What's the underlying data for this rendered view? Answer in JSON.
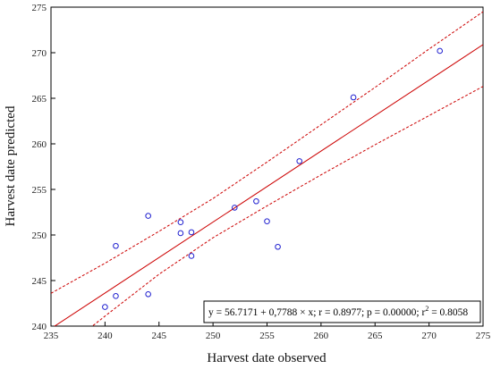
{
  "chart_data": {
    "type": "scatter",
    "xlabel": "Harvest date observed",
    "ylabel": "Harvest date predicted",
    "xlim": [
      235,
      275
    ],
    "ylim": [
      240,
      275
    ],
    "xticks": [
      235,
      240,
      245,
      250,
      255,
      260,
      265,
      270,
      275
    ],
    "yticks": [
      240,
      245,
      250,
      255,
      260,
      265,
      270,
      275
    ],
    "grid": false,
    "points": [
      {
        "x": 240.0,
        "y": 242.1
      },
      {
        "x": 241.0,
        "y": 243.3
      },
      {
        "x": 241.0,
        "y": 248.8
      },
      {
        "x": 244.0,
        "y": 243.5
      },
      {
        "x": 244.0,
        "y": 252.1
      },
      {
        "x": 247.0,
        "y": 250.2
      },
      {
        "x": 247.0,
        "y": 251.4
      },
      {
        "x": 248.0,
        "y": 250.3
      },
      {
        "x": 248.0,
        "y": 247.7
      },
      {
        "x": 252.0,
        "y": 253.0
      },
      {
        "x": 254.0,
        "y": 253.7
      },
      {
        "x": 255.0,
        "y": 251.5
      },
      {
        "x": 256.0,
        "y": 248.7
      },
      {
        "x": 258.0,
        "y": 258.1
      },
      {
        "x": 263.0,
        "y": 265.1
      },
      {
        "x": 271.0,
        "y": 270.2
      }
    ],
    "regression": {
      "intercept": 56.7171,
      "slope": 0.7788
    },
    "confidence_band": {
      "upper": [
        [
          235,
          243.6
        ],
        [
          240,
          246.9
        ],
        [
          245,
          250.4
        ],
        [
          250,
          254.0
        ],
        [
          255,
          258.0
        ],
        [
          260,
          262.1
        ],
        [
          265,
          266.2
        ],
        [
          270,
          270.4
        ],
        [
          275,
          274.5
        ]
      ],
      "lower": [
        [
          235,
          236.4
        ],
        [
          240,
          241.1
        ],
        [
          245,
          245.7
        ],
        [
          250,
          249.7
        ],
        [
          255,
          253.2
        ],
        [
          260,
          256.6
        ],
        [
          265,
          259.9
        ],
        [
          270,
          263.1
        ],
        [
          275,
          266.3
        ]
      ]
    },
    "annotation": {
      "text": "y = 56.7171 + 0,7788 × x;  r = 0.8977; p = 0.00000; r",
      "sup": "2",
      "tail": " = 0.8058",
      "position": "bottom-right"
    },
    "colors": {
      "points": "#1f1fcf",
      "lines": "#cc0000"
    }
  }
}
